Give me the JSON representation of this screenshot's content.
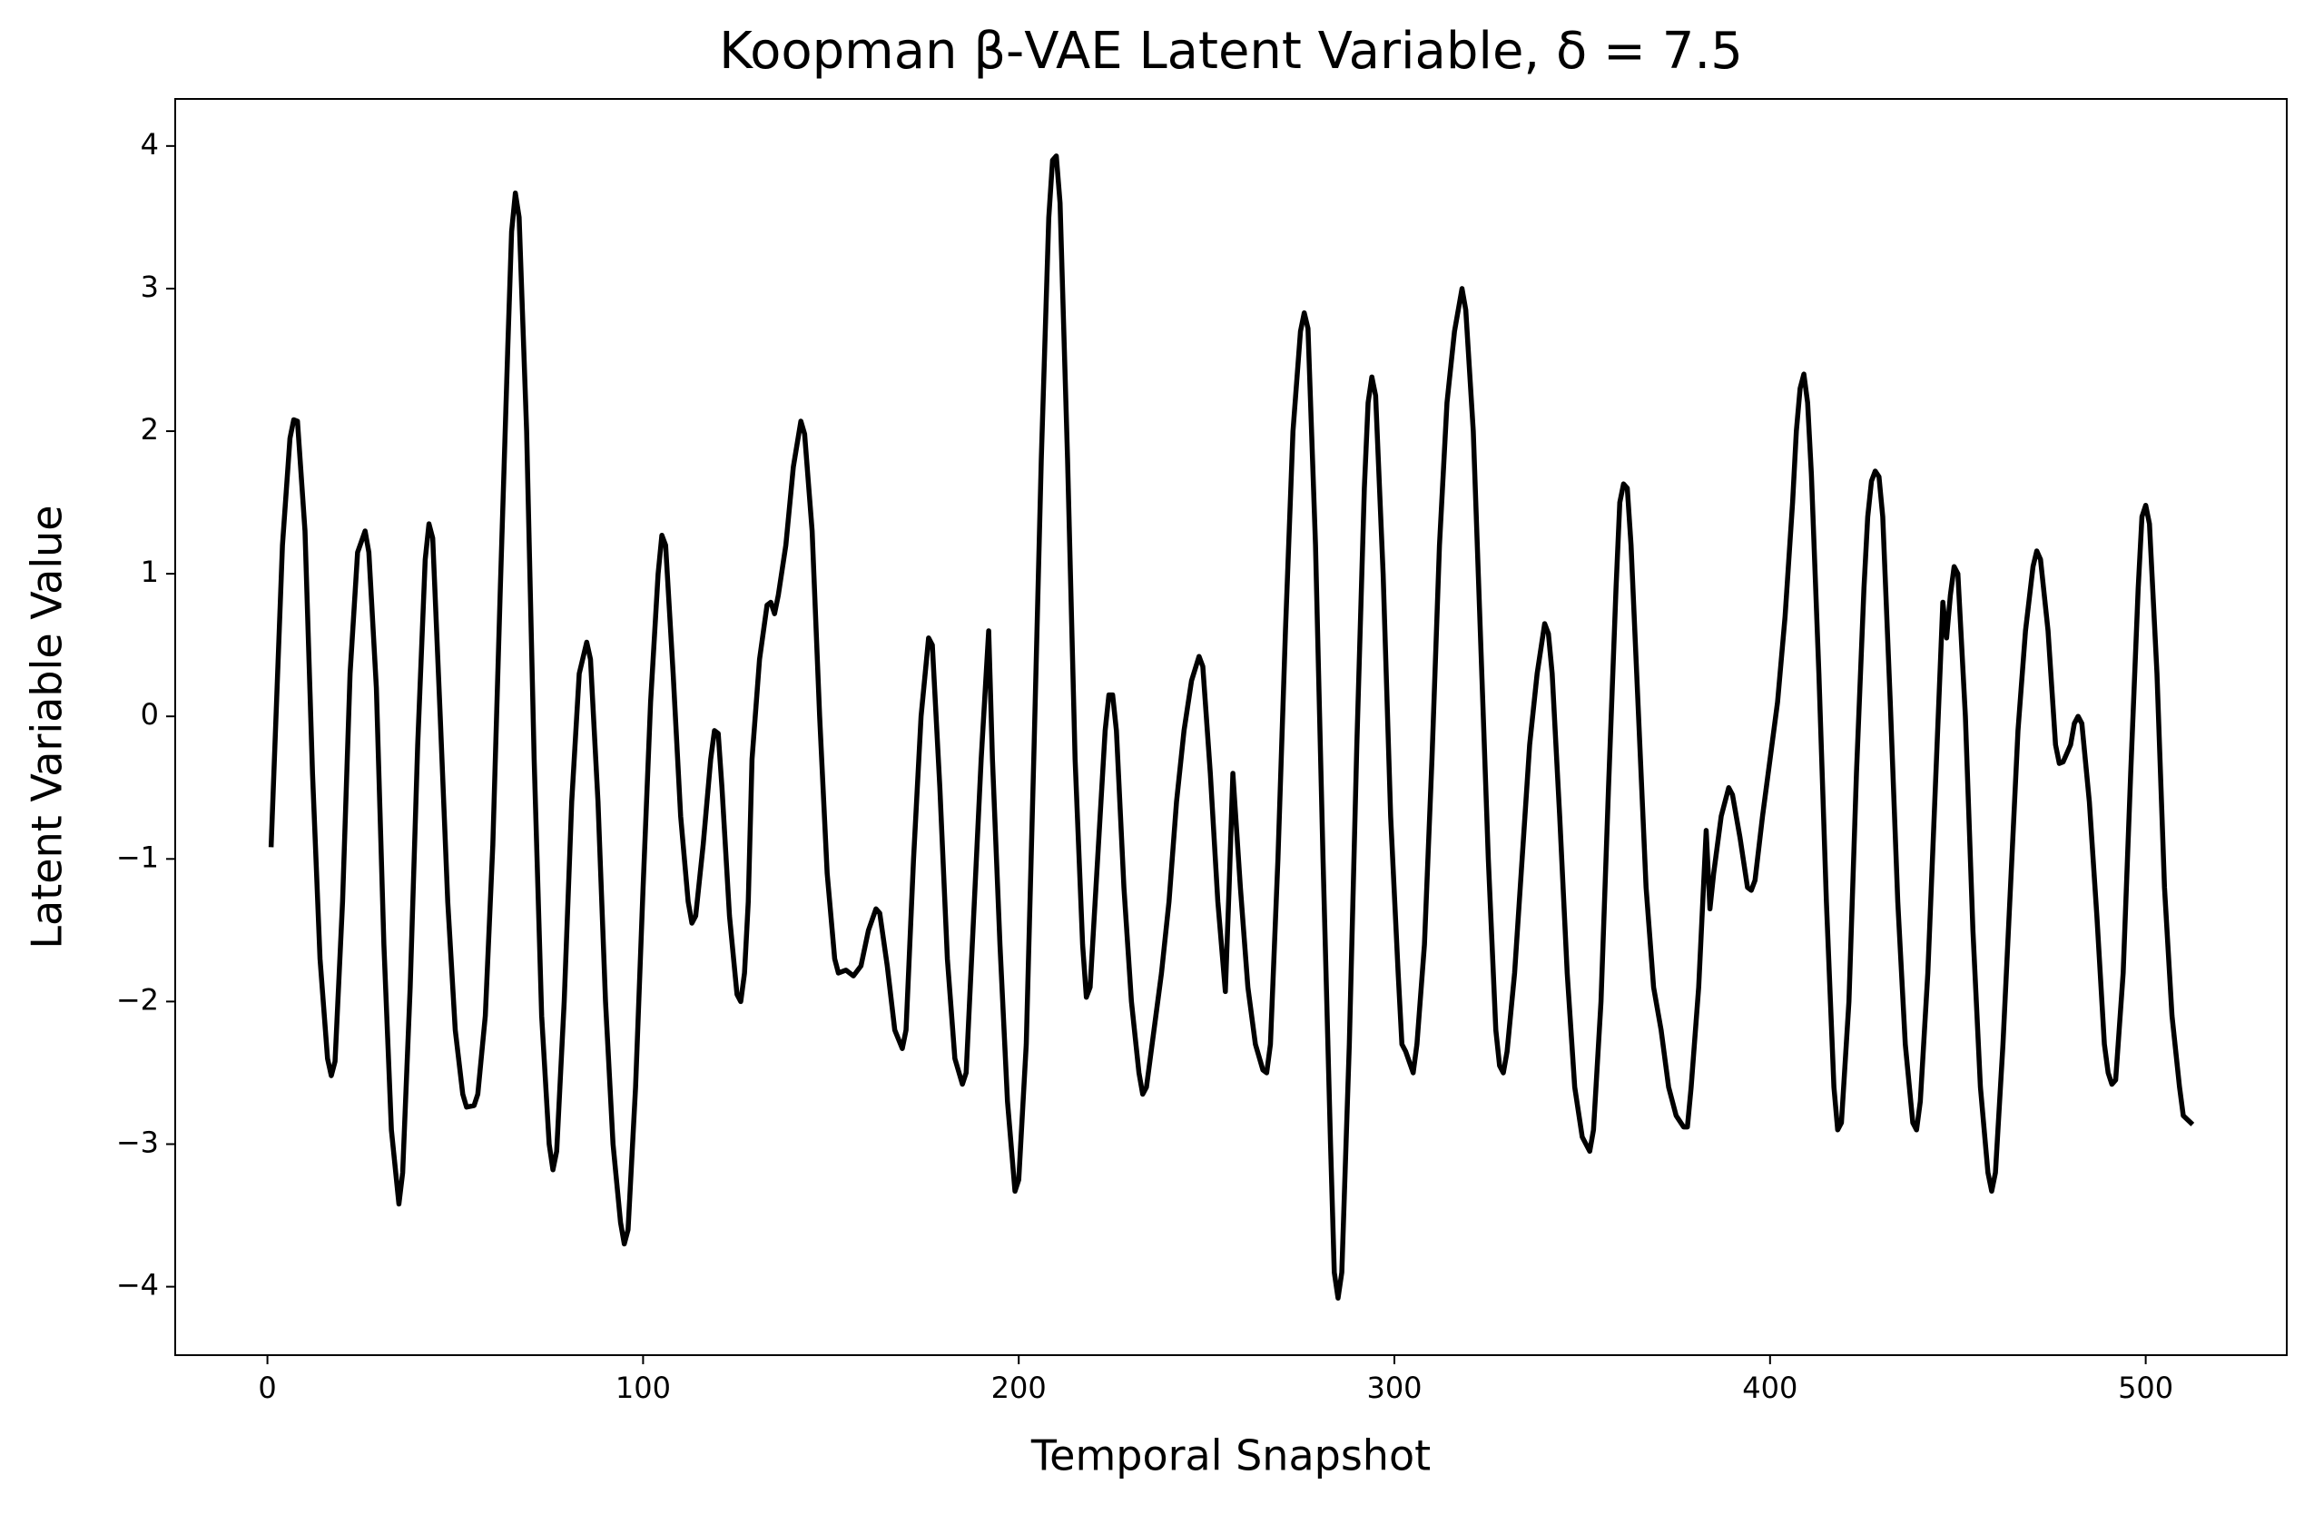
{
  "chart_data": {
    "type": "line",
    "title": "Koopman β-VAE Latent Variable, δ = 7.5",
    "xlabel": "Temporal Snapshot",
    "ylabel": "Latent Variable Value",
    "color": "#000000",
    "xlim": [
      -24.55,
      537.55
    ],
    "ylim": [
      -4.48,
      4.33
    ],
    "xticks": [
      0,
      100,
      200,
      300,
      400,
      500
    ],
    "yticks": [
      {
        "value": -4,
        "label": "−4"
      },
      {
        "value": -3,
        "label": "−3"
      },
      {
        "value": -2,
        "label": "−2"
      },
      {
        "value": -1,
        "label": "−1"
      },
      0,
      1,
      2,
      3,
      4
    ],
    "grid": false,
    "x": [
      1,
      4,
      6,
      7,
      8,
      10,
      12,
      14,
      16,
      17,
      18,
      20,
      22,
      24,
      26,
      27,
      29,
      31,
      33,
      35,
      36,
      38,
      40,
      42,
      43,
      44,
      46,
      48,
      50,
      52,
      53,
      55,
      56,
      58,
      60,
      62,
      64,
      65,
      66,
      67,
      69,
      71,
      73,
      75,
      76,
      77,
      79,
      81,
      83,
      85,
      86,
      88,
      90,
      92,
      94,
      95,
      96,
      98,
      100,
      102,
      104,
      105,
      106,
      108,
      110,
      112,
      113,
      114,
      116,
      118,
      119,
      120,
      121,
      123,
      125,
      126,
      127,
      128,
      129,
      131,
      133,
      134,
      135,
      136,
      138,
      140,
      142,
      143,
      145,
      147,
      149,
      151,
      152,
      154,
      156,
      158,
      160,
      162,
      163,
      165,
      167,
      169,
      170,
      172,
      174,
      176,
      177,
      179,
      181,
      183,
      185,
      186,
      188,
      190,
      192,
      193,
      195,
      197,
      199,
      200,
      202,
      204,
      206,
      208,
      209,
      210,
      211,
      213,
      215,
      217,
      218,
      219,
      221,
      223,
      224,
      225,
      226,
      228,
      230,
      232,
      233,
      234,
      236,
      238,
      240,
      242,
      244,
      246,
      248,
      249,
      251,
      253,
      255,
      256,
      257,
      259,
      261,
      263,
      265,
      266,
      267,
      269,
      271,
      273,
      275,
      276,
      277,
      279,
      281,
      283,
      284,
      285,
      286,
      288,
      290,
      292,
      293,
      294,
      295,
      297,
      299,
      301,
      302,
      303,
      305,
      306,
      308,
      310,
      312,
      314,
      316,
      318,
      319,
      321,
      323,
      325,
      327,
      328,
      329,
      330,
      332,
      334,
      336,
      338,
      340,
      341,
      342,
      344,
      346,
      348,
      350,
      352,
      353,
      355,
      357,
      359,
      360,
      361,
      362,
      363,
      365,
      367,
      369,
      371,
      373,
      375,
      377,
      378,
      379,
      381,
      383,
      384,
      385,
      387,
      389,
      390,
      392,
      394,
      395,
      396,
      398,
      400,
      402,
      404,
      406,
      407,
      408,
      409,
      410,
      411,
      413,
      415,
      417,
      418,
      419,
      421,
      423,
      425,
      426,
      427,
      428,
      429,
      430,
      432,
      434,
      436,
      438,
      439,
      440,
      442,
      444,
      446,
      447,
      448,
      449,
      450,
      452,
      454,
      456,
      458,
      459,
      460,
      462,
      464,
      466,
      468,
      470,
      471,
      472,
      474,
      476,
      477,
      478,
      480,
      481,
      482,
      483,
      485,
      487,
      489,
      490,
      491,
      492,
      494,
      496,
      498,
      499,
      500,
      501,
      503,
      505,
      507,
      509,
      510,
      512
    ],
    "values": [
      -0.9,
      1.2,
      1.95,
      2.08,
      2.07,
      1.3,
      -0.4,
      -1.7,
      -2.4,
      -2.52,
      -2.42,
      -1.3,
      0.3,
      1.15,
      1.3,
      1.15,
      0.2,
      -1.6,
      -2.9,
      -3.42,
      -3.2,
      -1.9,
      -0.2,
      1.1,
      1.35,
      1.25,
      0.0,
      -1.3,
      -2.2,
      -2.65,
      -2.74,
      -2.73,
      -2.65,
      -2.1,
      -0.9,
      0.9,
      2.6,
      3.4,
      3.67,
      3.5,
      2.0,
      -0.3,
      -2.1,
      -3.0,
      -3.18,
      -3.05,
      -2.0,
      -0.6,
      0.3,
      0.52,
      0.4,
      -0.6,
      -2.0,
      -3.0,
      -3.55,
      -3.7,
      -3.6,
      -2.6,
      -1.2,
      0.1,
      1.0,
      1.27,
      1.2,
      0.3,
      -0.7,
      -1.3,
      -1.45,
      -1.4,
      -0.9,
      -0.3,
      -0.1,
      -0.12,
      -0.5,
      -1.4,
      -1.95,
      -2.0,
      -1.8,
      -1.3,
      -0.3,
      0.4,
      0.78,
      0.8,
      0.72,
      0.85,
      1.2,
      1.75,
      2.07,
      1.98,
      1.3,
      0.0,
      -1.1,
      -1.7,
      -1.8,
      -1.78,
      -1.82,
      -1.75,
      -1.5,
      -1.35,
      -1.38,
      -1.75,
      -2.2,
      -2.33,
      -2.2,
      -1.0,
      0.0,
      0.55,
      0.5,
      -0.5,
      -1.7,
      -2.4,
      -2.58,
      -2.5,
      -1.4,
      -0.3,
      0.6,
      -0.3,
      -1.6,
      -2.7,
      -3.33,
      -3.25,
      -2.3,
      -0.3,
      1.8,
      3.5,
      3.9,
      3.93,
      3.6,
      1.8,
      -0.3,
      -1.6,
      -1.97,
      -1.9,
      -1.0,
      -0.1,
      0.15,
      0.15,
      -0.1,
      -1.2,
      -2.0,
      -2.5,
      -2.65,
      -2.6,
      -2.2,
      -1.8,
      -1.3,
      -0.6,
      -0.1,
      0.25,
      0.42,
      0.35,
      -0.4,
      -1.3,
      -1.93,
      -1.2,
      -0.4,
      -1.2,
      -1.9,
      -2.3,
      -2.48,
      -2.5,
      -2.3,
      -1.0,
      0.6,
      2.0,
      2.7,
      2.83,
      2.72,
      1.2,
      -1.0,
      -3.0,
      -3.9,
      -4.08,
      -3.9,
      -2.3,
      -0.2,
      1.6,
      2.2,
      2.38,
      2.25,
      1.0,
      -0.7,
      -1.8,
      -2.3,
      -2.35,
      -2.5,
      -2.3,
      -1.6,
      -0.3,
      1.2,
      2.2,
      2.7,
      3.0,
      2.85,
      2.0,
      0.5,
      -1.0,
      -2.2,
      -2.45,
      -2.5,
      -2.35,
      -1.8,
      -1.0,
      -0.2,
      0.3,
      0.65,
      0.58,
      0.3,
      -0.7,
      -1.8,
      -2.6,
      -2.95,
      -3.05,
      -2.9,
      -2.0,
      -0.5,
      0.9,
      1.5,
      1.63,
      1.6,
      1.2,
      0.0,
      -1.2,
      -1.9,
      -2.2,
      -2.6,
      -2.8,
      -2.88,
      -2.88,
      -2.6,
      -1.9,
      -0.8,
      -1.35,
      -1.1,
      -0.7,
      -0.5,
      -0.55,
      -0.85,
      -1.2,
      -1.22,
      -1.15,
      -0.7,
      -0.3,
      0.1,
      0.7,
      1.5,
      2.0,
      2.3,
      2.4,
      2.2,
      1.7,
      0.3,
      -1.3,
      -2.6,
      -2.9,
      -2.85,
      -2.0,
      -0.4,
      0.9,
      1.4,
      1.65,
      1.72,
      1.68,
      1.4,
      0.1,
      -1.3,
      -2.3,
      -2.85,
      -2.9,
      -2.7,
      -1.8,
      -0.5,
      0.8,
      0.55,
      0.85,
      1.05,
      1.0,
      0.0,
      -1.5,
      -2.6,
      -3.2,
      -3.33,
      -3.2,
      -2.3,
      -1.2,
      -0.1,
      0.6,
      1.05,
      1.16,
      1.1,
      0.6,
      -0.2,
      -0.33,
      -0.32,
      -0.2,
      -0.05,
      0.0,
      -0.05,
      -0.6,
      -1.4,
      -2.3,
      -2.5,
      -2.58,
      -2.55,
      -1.8,
      -0.4,
      0.9,
      1.4,
      1.48,
      1.35,
      0.3,
      -1.2,
      -2.1,
      -2.6,
      -2.8,
      -2.85
    ]
  }
}
